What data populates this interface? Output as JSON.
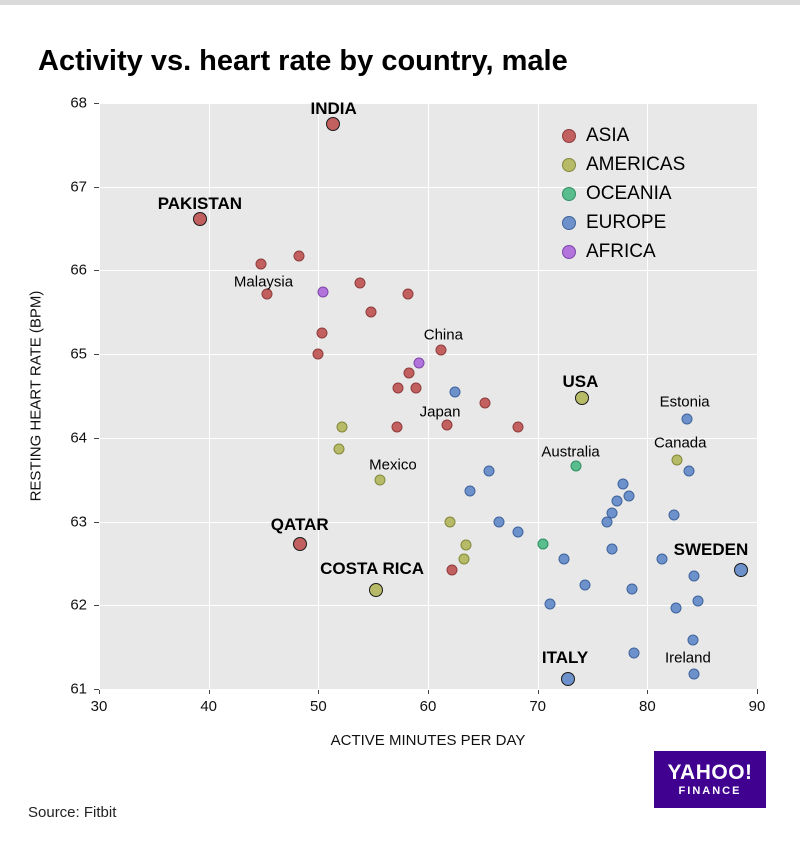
{
  "header": {
    "title": "Activity vs. heart rate by country, male"
  },
  "footer": {
    "source": "Source: Fitbit",
    "logo_line1": "YAHOO!",
    "logo_line2": "FINANCE"
  },
  "chart_data": {
    "type": "scatter",
    "title": "Activity vs. heart rate by country, male",
    "xlabel": "ACTIVE MINUTES PER DAY",
    "ylabel": "RESTING HEART RATE (BPM)",
    "xlim": [
      30,
      90
    ],
    "ylim": [
      61,
      68
    ],
    "xticks": [
      30,
      40,
      50,
      60,
      70,
      80,
      90
    ],
    "yticks": [
      61,
      62,
      63,
      64,
      65,
      66,
      67,
      68
    ],
    "grid": true,
    "legend_position": "top-right",
    "plot_bg": "#e8e8e8",
    "series": [
      {
        "name": "ASIA",
        "color": "#c2605f",
        "stroke": "#8f3c3c",
        "points": [
          {
            "x": 51.3,
            "y": 67.75,
            "big": true
          },
          {
            "x": 39.2,
            "y": 66.62,
            "big": true
          },
          {
            "x": 44.8,
            "y": 66.08
          },
          {
            "x": 48.2,
            "y": 66.17
          },
          {
            "x": 45.3,
            "y": 65.72
          },
          {
            "x": 53.8,
            "y": 65.85
          },
          {
            "x": 58.2,
            "y": 65.72
          },
          {
            "x": 54.8,
            "y": 65.5
          },
          {
            "x": 50.3,
            "y": 65.25
          },
          {
            "x": 50.0,
            "y": 65.0
          },
          {
            "x": 61.2,
            "y": 65.05
          },
          {
            "x": 58.3,
            "y": 64.78
          },
          {
            "x": 57.3,
            "y": 64.6
          },
          {
            "x": 58.9,
            "y": 64.6
          },
          {
            "x": 65.2,
            "y": 64.42
          },
          {
            "x": 61.7,
            "y": 64.15
          },
          {
            "x": 57.2,
            "y": 64.13
          },
          {
            "x": 68.2,
            "y": 64.13
          },
          {
            "x": 48.3,
            "y": 62.73,
            "big": true
          },
          {
            "x": 62.2,
            "y": 62.42
          }
        ]
      },
      {
        "name": "AMERICAS",
        "color": "#b7bb68",
        "stroke": "#83883c",
        "points": [
          {
            "x": 74.0,
            "y": 64.48,
            "big": true
          },
          {
            "x": 52.2,
            "y": 64.13
          },
          {
            "x": 51.9,
            "y": 63.87
          },
          {
            "x": 55.6,
            "y": 63.5
          },
          {
            "x": 82.7,
            "y": 63.74
          },
          {
            "x": 62.0,
            "y": 63.0
          },
          {
            "x": 63.5,
            "y": 62.72
          },
          {
            "x": 63.3,
            "y": 62.55
          },
          {
            "x": 55.3,
            "y": 62.18,
            "big": true
          }
        ]
      },
      {
        "name": "OCEANIA",
        "color": "#59bd8d",
        "stroke": "#2f8f62",
        "points": [
          {
            "x": 73.5,
            "y": 63.66
          },
          {
            "x": 70.5,
            "y": 62.73
          }
        ]
      },
      {
        "name": "EUROPE",
        "color": "#6d92cb",
        "stroke": "#3f639c",
        "points": [
          {
            "x": 62.5,
            "y": 64.55
          },
          {
            "x": 83.6,
            "y": 64.23
          },
          {
            "x": 83.8,
            "y": 63.6
          },
          {
            "x": 65.6,
            "y": 63.6
          },
          {
            "x": 63.8,
            "y": 63.37
          },
          {
            "x": 77.8,
            "y": 63.45
          },
          {
            "x": 78.3,
            "y": 63.3
          },
          {
            "x": 77.2,
            "y": 63.25
          },
          {
            "x": 76.8,
            "y": 63.1
          },
          {
            "x": 82.4,
            "y": 63.08
          },
          {
            "x": 76.3,
            "y": 63.0
          },
          {
            "x": 66.5,
            "y": 63.0
          },
          {
            "x": 68.2,
            "y": 62.88
          },
          {
            "x": 76.8,
            "y": 62.67
          },
          {
            "x": 72.4,
            "y": 62.55
          },
          {
            "x": 81.3,
            "y": 62.55
          },
          {
            "x": 88.5,
            "y": 62.42,
            "big": true
          },
          {
            "x": 84.3,
            "y": 62.35
          },
          {
            "x": 74.3,
            "y": 62.24
          },
          {
            "x": 78.6,
            "y": 62.2
          },
          {
            "x": 84.6,
            "y": 62.05
          },
          {
            "x": 82.6,
            "y": 61.97
          },
          {
            "x": 71.1,
            "y": 62.02
          },
          {
            "x": 78.8,
            "y": 61.43
          },
          {
            "x": 84.2,
            "y": 61.58
          },
          {
            "x": 84.3,
            "y": 61.18
          },
          {
            "x": 72.8,
            "y": 61.12,
            "big": true
          }
        ]
      },
      {
        "name": "AFRICA",
        "color": "#b273dc",
        "stroke": "#7e46aa",
        "points": [
          {
            "x": 50.4,
            "y": 65.74
          },
          {
            "x": 59.2,
            "y": 64.9
          }
        ]
      }
    ],
    "annotations": [
      {
        "text": "INDIA",
        "x": 51.4,
        "y": 67.93,
        "bold": true
      },
      {
        "text": "PAKISTAN",
        "x": 39.2,
        "y": 66.79,
        "bold": true
      },
      {
        "text": "Malaysia",
        "x": 45.0,
        "y": 65.86,
        "bold": false
      },
      {
        "text": "China",
        "x": 61.4,
        "y": 65.23,
        "bold": false
      },
      {
        "text": "Japan",
        "x": 61.1,
        "y": 64.31,
        "bold": false
      },
      {
        "text": "USA",
        "x": 73.9,
        "y": 64.67,
        "bold": true
      },
      {
        "text": "Estonia",
        "x": 83.4,
        "y": 64.43,
        "bold": false
      },
      {
        "text": "Canada",
        "x": 83.0,
        "y": 63.94,
        "bold": false
      },
      {
        "text": "Australia",
        "x": 73.0,
        "y": 63.83,
        "bold": false
      },
      {
        "text": "Mexico",
        "x": 56.8,
        "y": 63.67,
        "bold": false
      },
      {
        "text": "QATAR",
        "x": 48.3,
        "y": 62.96,
        "bold": true
      },
      {
        "text": "COSTA RICA",
        "x": 54.9,
        "y": 62.43,
        "bold": true
      },
      {
        "text": "SWEDEN",
        "x": 85.8,
        "y": 62.66,
        "bold": true
      },
      {
        "text": "ITALY",
        "x": 72.5,
        "y": 61.37,
        "bold": true
      },
      {
        "text": "Ireland",
        "x": 83.7,
        "y": 61.37,
        "bold": false
      }
    ]
  }
}
